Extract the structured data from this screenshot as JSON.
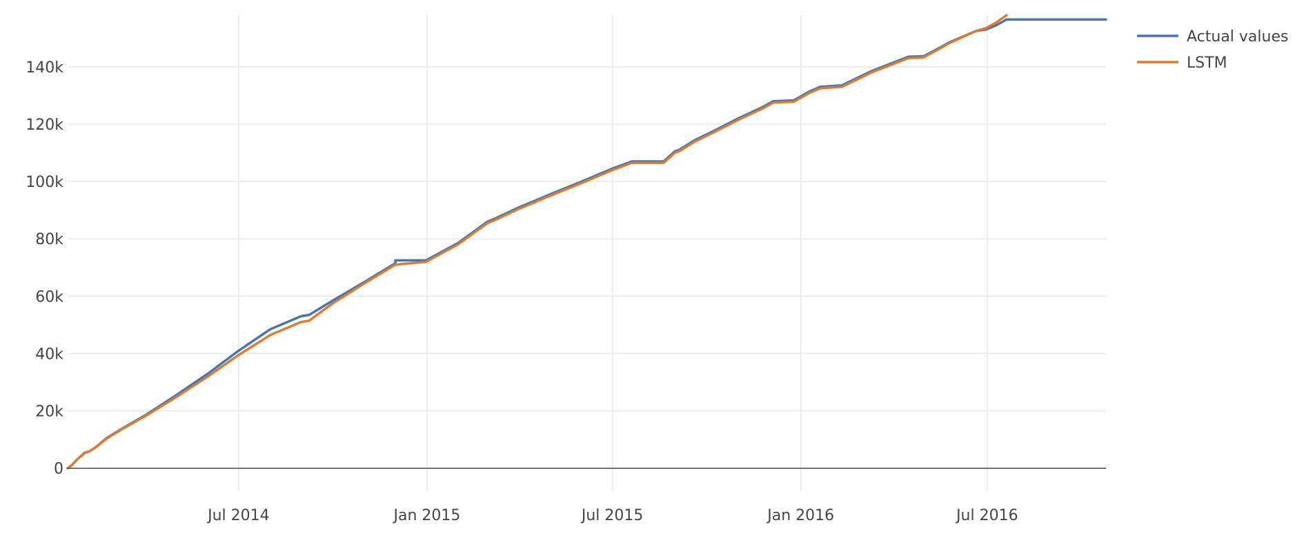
{
  "chart_data": {
    "type": "line",
    "x_axis": {
      "type": "date",
      "range": [
        "2014-01-15",
        "2016-10-25"
      ],
      "ticks": [
        {
          "value": "2014-07-01",
          "label": "Jul 2014"
        },
        {
          "value": "2015-01-01",
          "label": "Jan 2015"
        },
        {
          "value": "2015-07-01",
          "label": "Jul 2015"
        },
        {
          "value": "2016-01-01",
          "label": "Jan 2016"
        },
        {
          "value": "2016-07-01",
          "label": "Jul 2016"
        }
      ],
      "grid": true
    },
    "y_axis": {
      "range": [
        -8000,
        158000
      ],
      "ticks": [
        {
          "value": 0,
          "label": "0"
        },
        {
          "value": 20000,
          "label": "20k"
        },
        {
          "value": 40000,
          "label": "40k"
        },
        {
          "value": 60000,
          "label": "60k"
        },
        {
          "value": 80000,
          "label": "80k"
        },
        {
          "value": 100000,
          "label": "100k"
        },
        {
          "value": 120000,
          "label": "120k"
        },
        {
          "value": 140000,
          "label": "140k"
        }
      ],
      "grid": true,
      "zero_line": true
    },
    "legend": {
      "position": "top-right"
    },
    "series": [
      {
        "name": "Actual values",
        "color": "#4674b4",
        "points": [
          [
            "2014-01-15",
            0
          ],
          [
            "2014-01-19",
            1000
          ],
          [
            "2014-01-24",
            3000
          ],
          [
            "2014-02-01",
            5500
          ],
          [
            "2014-02-05",
            5800
          ],
          [
            "2014-02-12",
            7500
          ],
          [
            "2014-02-22",
            10500
          ],
          [
            "2014-03-10",
            14000
          ],
          [
            "2014-04-01",
            18500
          ],
          [
            "2014-05-01",
            25500
          ],
          [
            "2014-06-01",
            33000
          ],
          [
            "2014-07-01",
            41000
          ],
          [
            "2014-08-01",
            48500
          ],
          [
            "2014-08-31",
            53000
          ],
          [
            "2014-09-08",
            53500
          ],
          [
            "2014-10-01",
            58500
          ],
          [
            "2014-11-01",
            65000
          ],
          [
            "2014-12-01",
            71500
          ],
          [
            "2014-12-01",
            72500
          ],
          [
            "2014-12-31",
            72500
          ],
          [
            "2015-01-31",
            78500
          ],
          [
            "2015-03-01",
            86000
          ],
          [
            "2015-03-08",
            87000
          ],
          [
            "2015-04-01",
            91000
          ],
          [
            "2015-05-01",
            95500
          ],
          [
            "2015-06-01",
            100000
          ],
          [
            "2015-07-01",
            104500
          ],
          [
            "2015-07-20",
            107000
          ],
          [
            "2015-08-20",
            107000
          ],
          [
            "2015-08-31",
            110500
          ],
          [
            "2015-09-04",
            111000
          ],
          [
            "2015-09-20",
            114500
          ],
          [
            "2015-10-10",
            118000
          ],
          [
            "2015-11-01",
            122000
          ],
          [
            "2015-11-25",
            126000
          ],
          [
            "2015-12-05",
            128000
          ],
          [
            "2015-12-25",
            128300
          ],
          [
            "2016-01-10",
            131500
          ],
          [
            "2016-01-20",
            133000
          ],
          [
            "2016-02-10",
            133500
          ],
          [
            "2016-03-10",
            138500
          ],
          [
            "2016-04-15",
            143500
          ],
          [
            "2016-04-30",
            143700
          ],
          [
            "2016-05-15",
            146500
          ],
          [
            "2016-05-25",
            148500
          ],
          [
            "2016-06-20",
            152500
          ],
          [
            "2016-06-30",
            153000
          ],
          [
            "2016-07-10",
            154500
          ],
          [
            "2016-07-20",
            156500
          ],
          [
            "2016-08-01",
            156500
          ],
          [
            "2016-10-25",
            156500
          ]
        ]
      },
      {
        "name": "LSTM",
        "color": "#e07b2e",
        "points": [
          [
            "2014-01-15",
            0
          ],
          [
            "2014-01-19",
            1000
          ],
          [
            "2014-01-24",
            3000
          ],
          [
            "2014-02-01",
            5500
          ],
          [
            "2014-02-05",
            5800
          ],
          [
            "2014-02-12",
            7500
          ],
          [
            "2014-02-22",
            10300
          ],
          [
            "2014-03-10",
            13800
          ],
          [
            "2014-04-01",
            18200
          ],
          [
            "2014-05-01",
            24800
          ],
          [
            "2014-06-01",
            32000
          ],
          [
            "2014-07-01",
            39500
          ],
          [
            "2014-08-01",
            46500
          ],
          [
            "2014-08-31",
            51000
          ],
          [
            "2014-09-08",
            51500
          ],
          [
            "2014-10-01",
            57500
          ],
          [
            "2014-11-01",
            64500
          ],
          [
            "2014-12-01",
            71000
          ],
          [
            "2014-12-31",
            72000
          ],
          [
            "2015-01-31",
            78000
          ],
          [
            "2015-03-01",
            85500
          ],
          [
            "2015-03-08",
            86500
          ],
          [
            "2015-04-01",
            90500
          ],
          [
            "2015-05-01",
            95000
          ],
          [
            "2015-06-01",
            99500
          ],
          [
            "2015-07-01",
            104000
          ],
          [
            "2015-07-20",
            106500
          ],
          [
            "2015-08-20",
            106500
          ],
          [
            "2015-08-31",
            110000
          ],
          [
            "2015-09-04",
            110500
          ],
          [
            "2015-09-20",
            114000
          ],
          [
            "2015-10-10",
            117500
          ],
          [
            "2015-11-01",
            121500
          ],
          [
            "2015-11-25",
            125500
          ],
          [
            "2015-12-05",
            127500
          ],
          [
            "2015-12-25",
            127800
          ],
          [
            "2016-01-10",
            131000
          ],
          [
            "2016-01-20",
            132500
          ],
          [
            "2016-02-10",
            133000
          ],
          [
            "2016-03-10",
            138000
          ],
          [
            "2016-04-15",
            143000
          ],
          [
            "2016-04-30",
            143300
          ],
          [
            "2016-05-15",
            146200
          ],
          [
            "2016-05-25",
            148200
          ],
          [
            "2016-06-20",
            152500
          ],
          [
            "2016-06-30",
            153500
          ],
          [
            "2016-07-10",
            155500
          ],
          [
            "2016-07-20",
            158000
          ]
        ]
      }
    ]
  }
}
